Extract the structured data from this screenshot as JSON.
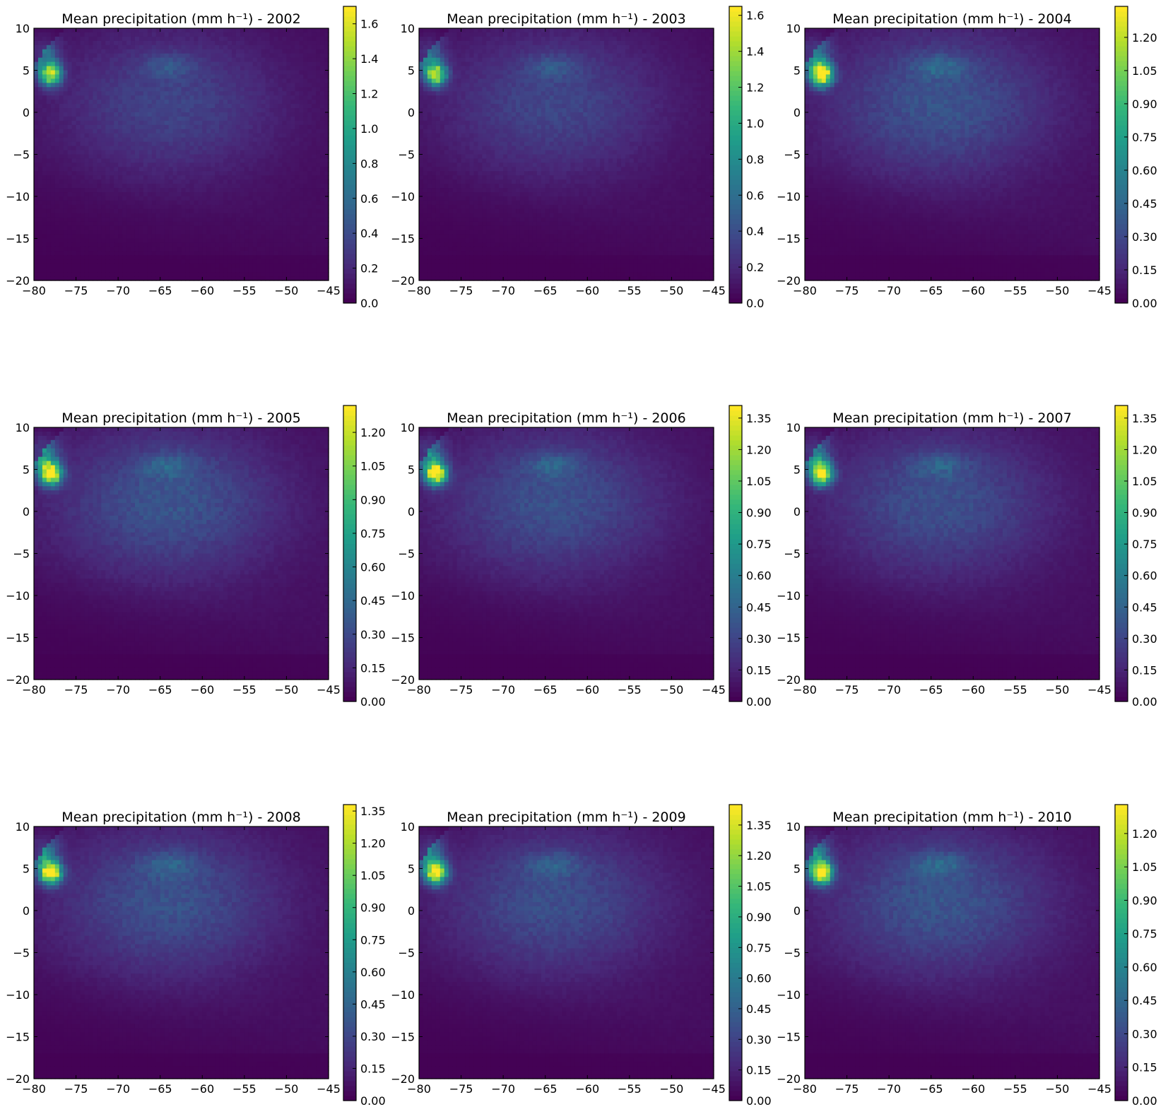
{
  "figure": {
    "colormap": [
      "#440154",
      "#482878",
      "#3e4989",
      "#31688e",
      "#26828e",
      "#1f9e89",
      "#35b779",
      "#6ece58",
      "#b5de2b",
      "#fde725"
    ]
  },
  "chart_data": [
    {
      "type": "heatmap",
      "title": "Mean precipitation (mm h⁻¹) - 2002",
      "x_ticks": [
        "−80",
        "−75",
        "−70",
        "−65",
        "−60",
        "−55",
        "−50",
        "−45"
      ],
      "y_ticks": [
        "10",
        "5",
        "0",
        "−5",
        "−10",
        "−15",
        "−20"
      ],
      "xlim": [
        -80,
        -45
      ],
      "ylim": [
        -20,
        10
      ],
      "colorbar_range": [
        0,
        1.7
      ],
      "colorbar_ticks": [
        "0.0",
        "0.2",
        "0.4",
        "0.6",
        "0.8",
        "1.0",
        "1.2",
        "1.4",
        "1.6"
      ],
      "max_value": 1.65
    },
    {
      "type": "heatmap",
      "title": "Mean precipitation (mm h⁻¹) - 2003",
      "x_ticks": [
        "−80",
        "−75",
        "−70",
        "−65",
        "−60",
        "−55",
        "−50",
        "−45"
      ],
      "y_ticks": [
        "10",
        "5",
        "0",
        "−5",
        "−10",
        "−15",
        "−20"
      ],
      "xlim": [
        -80,
        -45
      ],
      "ylim": [
        -20,
        10
      ],
      "colorbar_range": [
        0,
        1.65
      ],
      "colorbar_ticks": [
        "0.0",
        "0.2",
        "0.4",
        "0.6",
        "0.8",
        "1.0",
        "1.2",
        "1.4",
        "1.6"
      ],
      "max_value": 1.6
    },
    {
      "type": "heatmap",
      "title": "Mean precipitation (mm h⁻¹) - 2004",
      "x_ticks": [
        "−80",
        "−75",
        "−70",
        "−65",
        "−60",
        "−55",
        "−50",
        "−45"
      ],
      "y_ticks": [
        "10",
        "5",
        "0",
        "−5",
        "−10",
        "−15",
        "−20"
      ],
      "xlim": [
        -80,
        -45
      ],
      "ylim": [
        -20,
        10
      ],
      "colorbar_range": [
        0,
        1.34
      ],
      "colorbar_ticks": [
        "0.00",
        "0.15",
        "0.30",
        "0.45",
        "0.60",
        "0.75",
        "0.90",
        "1.05",
        "1.20"
      ],
      "max_value": 1.3
    },
    {
      "type": "heatmap",
      "title": "Mean precipitation (mm h⁻¹) - 2005",
      "x_ticks": [
        "−80",
        "−75",
        "−70",
        "−65",
        "−60",
        "−55",
        "−50",
        "−45"
      ],
      "y_ticks": [
        "10",
        "5",
        "0",
        "−5",
        "−10",
        "−15",
        "−20"
      ],
      "xlim": [
        -80,
        -45
      ],
      "ylim": [
        -20,
        10
      ],
      "colorbar_range": [
        0,
        1.32
      ],
      "colorbar_ticks": [
        "0.00",
        "0.15",
        "0.30",
        "0.45",
        "0.60",
        "0.75",
        "0.90",
        "1.05",
        "1.20"
      ],
      "max_value": 1.3
    },
    {
      "type": "heatmap",
      "title": "Mean precipitation (mm h⁻¹) - 2006",
      "x_ticks": [
        "−80",
        "−75",
        "−70",
        "−65",
        "−60",
        "−55",
        "−50",
        "−45"
      ],
      "y_ticks": [
        "10",
        "5",
        "0",
        "−5",
        "−10",
        "−15",
        "−20"
      ],
      "xlim": [
        -80,
        -45
      ],
      "ylim": [
        -20,
        10
      ],
      "colorbar_range": [
        0,
        1.41
      ],
      "colorbar_ticks": [
        "0.00",
        "0.15",
        "0.30",
        "0.45",
        "0.60",
        "0.75",
        "0.90",
        "1.05",
        "1.20",
        "1.35"
      ],
      "max_value": 1.38
    },
    {
      "type": "heatmap",
      "title": "Mean precipitation (mm h⁻¹) - 2007",
      "x_ticks": [
        "−80",
        "−75",
        "−70",
        "−65",
        "−60",
        "−55",
        "−50",
        "−45"
      ],
      "y_ticks": [
        "10",
        "5",
        "0",
        "−5",
        "−10",
        "−15",
        "−20"
      ],
      "xlim": [
        -80,
        -45
      ],
      "ylim": [
        -20,
        10
      ],
      "colorbar_range": [
        0,
        1.41
      ],
      "colorbar_ticks": [
        "0.00",
        "0.15",
        "0.30",
        "0.45",
        "0.60",
        "0.75",
        "0.90",
        "1.05",
        "1.20",
        "1.35"
      ],
      "max_value": 1.38
    },
    {
      "type": "heatmap",
      "title": "Mean precipitation (mm h⁻¹) - 2008",
      "x_ticks": [
        "−80",
        "−75",
        "−70",
        "−65",
        "−60",
        "−55",
        "−50",
        "−45"
      ],
      "y_ticks": [
        "10",
        "5",
        "0",
        "−5",
        "−10",
        "−15",
        "−20"
      ],
      "xlim": [
        -80,
        -45
      ],
      "ylim": [
        -20,
        10
      ],
      "colorbar_range": [
        0,
        1.38
      ],
      "colorbar_ticks": [
        "0.00",
        "0.15",
        "0.30",
        "0.45",
        "0.60",
        "0.75",
        "0.90",
        "1.05",
        "1.20",
        "1.35"
      ],
      "max_value": 1.36
    },
    {
      "type": "heatmap",
      "title": "Mean precipitation (mm h⁻¹) - 2009",
      "x_ticks": [
        "−80",
        "−75",
        "−70",
        "−65",
        "−60",
        "−55",
        "−50",
        "−45"
      ],
      "y_ticks": [
        "10",
        "5",
        "0",
        "−5",
        "−10",
        "−15",
        "−20"
      ],
      "xlim": [
        -80,
        -45
      ],
      "ylim": [
        -20,
        10
      ],
      "colorbar_range": [
        0,
        1.45
      ],
      "colorbar_ticks": [
        "0.00",
        "0.15",
        "0.30",
        "0.45",
        "0.60",
        "0.75",
        "0.90",
        "1.05",
        "1.20",
        "1.35"
      ],
      "max_value": 1.42
    },
    {
      "type": "heatmap",
      "title": "Mean precipitation (mm h⁻¹) - 2010",
      "x_ticks": [
        "−80",
        "−75",
        "−70",
        "−65",
        "−60",
        "−55",
        "−50",
        "−45"
      ],
      "y_ticks": [
        "10",
        "5",
        "0",
        "−5",
        "−10",
        "−15",
        "−20"
      ],
      "xlim": [
        -80,
        -45
      ],
      "ylim": [
        -20,
        10
      ],
      "colorbar_range": [
        0,
        1.33
      ],
      "colorbar_ticks": [
        "0.00",
        "0.15",
        "0.30",
        "0.45",
        "0.60",
        "0.75",
        "0.90",
        "1.05",
        "1.20"
      ],
      "max_value": 1.3
    }
  ]
}
